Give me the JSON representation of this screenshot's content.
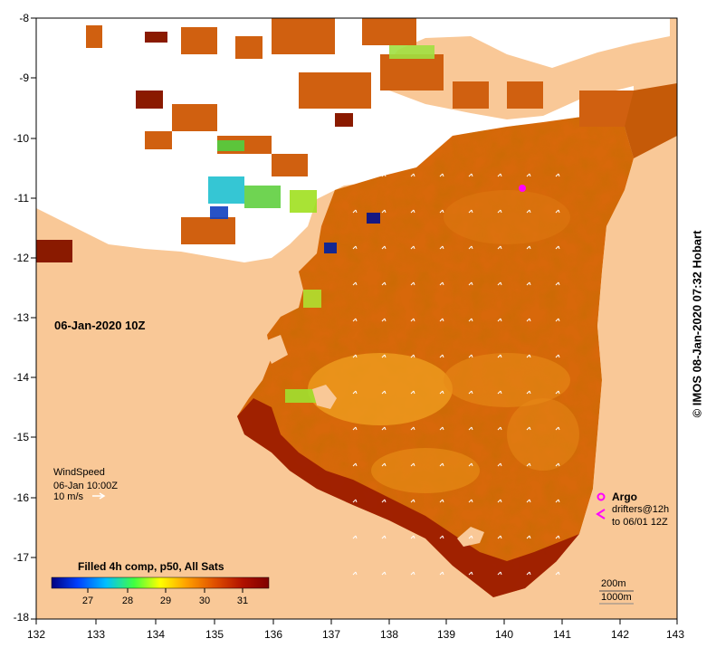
{
  "map": {
    "date_label": "06-Jan-2020 10Z",
    "credit": "© IMOS 08-Jan-2020 07:32 Hobart",
    "lon_ticks": [
      "132",
      "133",
      "134",
      "135",
      "136",
      "137",
      "138",
      "139",
      "140",
      "141",
      "142",
      "143"
    ],
    "lat_ticks": [
      "-8",
      "-9",
      "-10",
      "-11",
      "-12",
      "-13",
      "-14",
      "-15",
      "-16",
      "-17",
      "-18"
    ]
  },
  "wind": {
    "title": "WindSpeed",
    "time": "06-Jan 10:00Z",
    "scale": "10 m/s"
  },
  "legend": {
    "argo": "Argo",
    "drifters_line1": "drifters@12h",
    "drifters_line2": "to 06/01 12Z",
    "depth1": "200m",
    "depth2": "1000m"
  },
  "colorbar": {
    "title": "Filled 4h comp, p50, All Sats",
    "labels": [
      "27",
      "28",
      "29",
      "30",
      "31"
    ],
    "colors": [
      "#00007f",
      "#0040ff",
      "#00bfff",
      "#40ff40",
      "#ffff00",
      "#ffa000",
      "#e05000",
      "#b01000",
      "#7f0000"
    ]
  },
  "colors": {
    "land": "#f9c897",
    "cloud": "#ffffff",
    "argo": "#ff00ff"
  }
}
